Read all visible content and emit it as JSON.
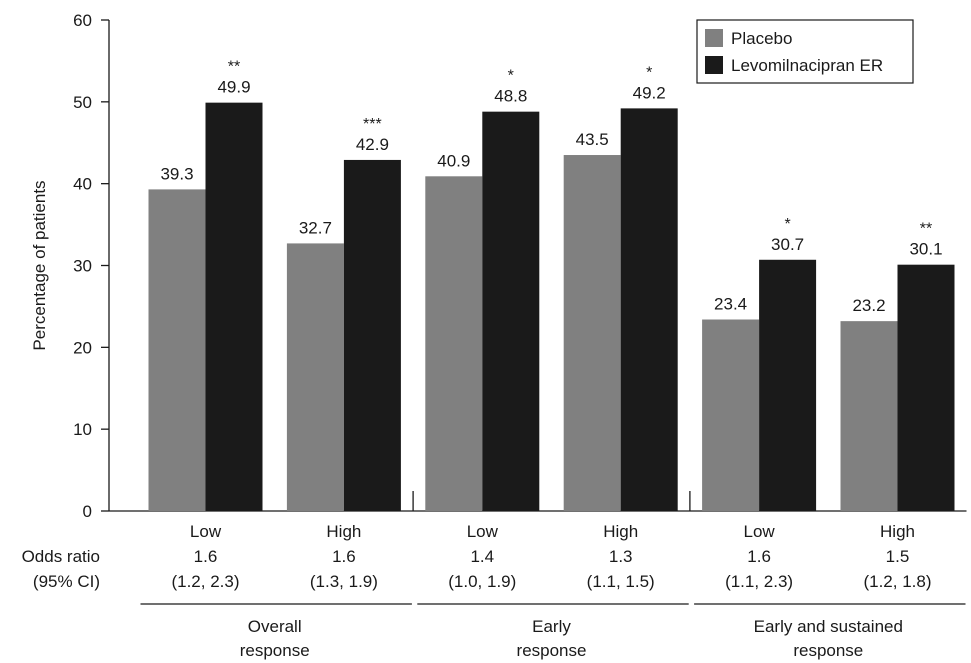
{
  "chart_data": {
    "type": "bar",
    "title": "",
    "xlabel": "",
    "ylabel": "Percentage of patients",
    "ylim": [
      0,
      60
    ],
    "yticks": [
      0,
      10,
      20,
      30,
      40,
      50,
      60
    ],
    "grid": false,
    "legend_position": "top-right",
    "series": [
      {
        "name": "Placebo",
        "color": "#808080",
        "values": [
          39.3,
          32.7,
          40.9,
          43.5,
          23.4,
          23.2
        ]
      },
      {
        "name": "Levomilnacipran ER",
        "color": "#1a1a1a",
        "values": [
          49.9,
          42.9,
          48.8,
          49.2,
          30.7,
          30.1
        ]
      }
    ],
    "significance": [
      "**",
      "***",
      "*",
      "*",
      "*",
      "**"
    ],
    "categories": [
      "Low",
      "High",
      "Low",
      "High",
      "Low",
      "High"
    ],
    "odds_ratio_label": [
      "Odds ratio",
      "(95% CI)"
    ],
    "odds_ratios": [
      "1.6",
      "1.6",
      "1.4",
      "1.3",
      "1.6",
      "1.5"
    ],
    "confidence_intervals": [
      "(1.2, 2.3)",
      "(1.3, 1.9)",
      "(1.0, 1.9)",
      "(1.1, 1.5)",
      "(1.1, 2.3)",
      "(1.2, 1.8)"
    ],
    "groups": [
      {
        "label": [
          "Overall",
          "response"
        ],
        "categories": [
          0,
          1
        ]
      },
      {
        "label": [
          "Early",
          "response"
        ],
        "categories": [
          2,
          3
        ]
      },
      {
        "label": [
          "Early and sustained",
          "response"
        ],
        "categories": [
          4,
          5
        ]
      }
    ]
  }
}
